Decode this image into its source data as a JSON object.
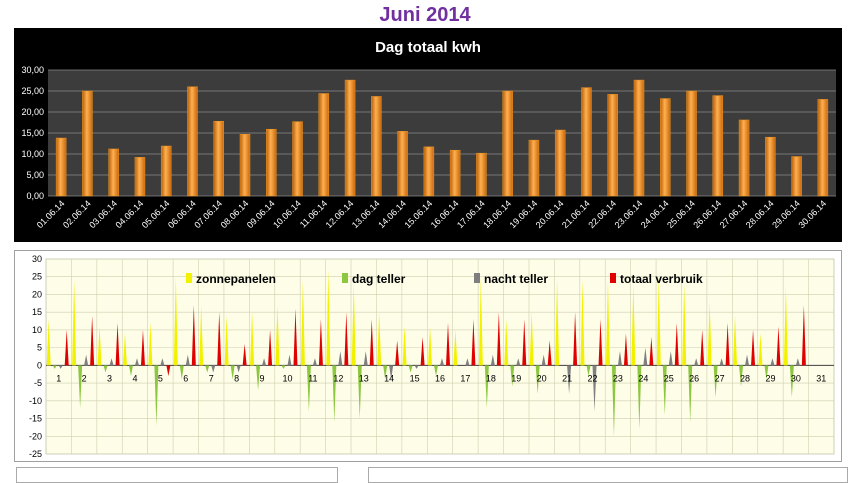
{
  "page": {
    "title": "Juni 2014"
  },
  "chart_data": [
    {
      "type": "bar",
      "title": "Dag totaal kwh",
      "categories": [
        "01.06.14",
        "02.06.14",
        "03.06.14",
        "04.06.14",
        "05.06.14",
        "06.06.14",
        "07.06.14",
        "08.06.14",
        "09.06.14",
        "10.06.14",
        "11.06.14",
        "12.06.14",
        "13.06.14",
        "14.06.14",
        "15.06.14",
        "16.06.14",
        "17.06.14",
        "18.06.14",
        "19.06.14",
        "20.06.14",
        "21.06.14",
        "22.06.14",
        "23.06.14",
        "24.06.14",
        "25.06.14",
        "26.06.14",
        "27.06.14",
        "28.06.14",
        "29.06.14",
        "30.06.14"
      ],
      "values": [
        13.8,
        25.0,
        11.2,
        9.2,
        11.9,
        26.0,
        17.8,
        14.7,
        15.9,
        17.7,
        24.4,
        27.6,
        23.7,
        15.4,
        11.7,
        10.9,
        10.2,
        25.0,
        13.3,
        15.7,
        25.8,
        24.2,
        27.6,
        23.2,
        25.0,
        23.9,
        18.1,
        14.0,
        9.4,
        23.0
      ],
      "ylim": [
        0,
        30
      ],
      "ytick_labels": [
        "0,00",
        "5,00",
        "10,00",
        "15,00",
        "20,00",
        "25,00",
        "30,00"
      ],
      "grid": true,
      "colors": {
        "background": "#000000",
        "plot": "#3c3c3c",
        "bar": "#f0941e",
        "text": "#ffffff"
      }
    },
    {
      "type": "bar",
      "categories": [
        "1",
        "2",
        "3",
        "4",
        "5",
        "6",
        "7",
        "8",
        "9",
        "10",
        "11",
        "12",
        "13",
        "14",
        "15",
        "16",
        "17",
        "18",
        "19",
        "20",
        "21",
        "22",
        "23",
        "24",
        "25",
        "26",
        "27",
        "28",
        "29",
        "30",
        "31"
      ],
      "ylim": [
        -25,
        30
      ],
      "ytick_labels": [
        "30",
        "25",
        "20",
        "15",
        "10",
        "5",
        "0",
        "-5",
        "-10",
        "-15",
        "-20",
        "-25"
      ],
      "legend_position": "top",
      "series": [
        {
          "name": "zonnepanelen",
          "color": "#f2f200",
          "values": [
            13,
            24,
            11,
            9,
            12,
            25,
            17,
            14,
            15,
            17,
            24,
            27,
            23,
            15,
            11,
            11,
            10,
            25,
            13,
            15,
            24,
            24,
            24,
            23,
            25,
            23,
            18,
            14,
            9,
            22,
            0
          ]
        },
        {
          "name": "dag teller",
          "color": "#8dc63f",
          "values": [
            -1,
            -12,
            -2,
            -3,
            -17,
            -4,
            -2,
            -4,
            -7,
            -1,
            -13,
            -16,
            -15,
            -4,
            -2,
            -3,
            0,
            -12,
            -6,
            -8,
            0,
            -3,
            -20,
            -18,
            -14,
            -16,
            -9,
            -6,
            -4,
            -9,
            0
          ]
        },
        {
          "name": "nacht teller",
          "color": "#7f7f7f",
          "values": [
            -1,
            3,
            2,
            2,
            2,
            3,
            -2,
            -2,
            2,
            3,
            2,
            4,
            4,
            -4,
            -1,
            2,
            2,
            3,
            2,
            3,
            -8,
            -13,
            4,
            5,
            4,
            2,
            2,
            3,
            2,
            2,
            0
          ]
        },
        {
          "name": "totaal verbruik",
          "color": "#e00000",
          "values": [
            10,
            14,
            12,
            10,
            -3,
            17,
            15,
            6,
            10,
            16,
            13,
            15,
            13,
            7,
            8,
            12,
            13,
            15,
            13,
            7,
            15,
            13,
            9,
            8,
            12,
            10,
            12,
            10,
            11,
            17,
            0
          ]
        }
      ],
      "colors": {
        "background": "#fdfde8",
        "grid": "#cfcfb0"
      }
    }
  ]
}
